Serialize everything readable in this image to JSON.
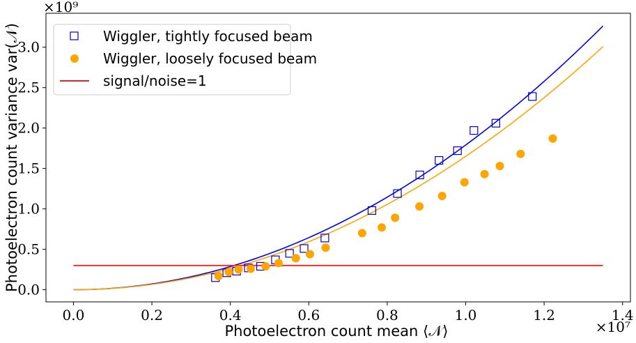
{
  "chart_data": {
    "type": "scatter",
    "xlabel": "Photoelectron count mean ⟨𝒩⟩",
    "ylabel": "Photoelectron count variance var(𝒩)",
    "x_multiplier": "×10⁷",
    "y_multiplier": "×10⁹",
    "xlim": [
      -0.07,
      1.42
    ],
    "ylim": [
      -0.15,
      3.42
    ],
    "x_ticks": [
      0.0,
      0.2,
      0.4,
      0.6,
      0.8,
      1.0,
      1.2,
      1.4
    ],
    "x_tick_labels": [
      "0.0",
      "0.2",
      "0.4",
      "0.6",
      "0.8",
      "1.0",
      "1.2",
      "1.4"
    ],
    "y_ticks": [
      0.0,
      0.5,
      1.0,
      1.5,
      2.0,
      2.5,
      3.0
    ],
    "y_tick_labels": [
      "0.0",
      "0.5",
      "1.0",
      "1.5",
      "2.0",
      "2.5",
      "3.0"
    ],
    "grid": false,
    "legend_position": "top-left",
    "series": [
      {
        "name": "Wiggler, tightly focused beam",
        "kind": "markers",
        "marker": "open-square",
        "color": "#0000cc",
        "x": [
          0.362,
          0.391,
          0.416,
          0.446,
          0.477,
          0.515,
          0.551,
          0.588,
          0.641,
          0.761,
          0.826,
          0.883,
          0.932,
          0.979,
          1.021,
          1.077,
          1.17
        ],
        "y": [
          0.15,
          0.21,
          0.23,
          0.27,
          0.29,
          0.37,
          0.45,
          0.51,
          0.64,
          0.98,
          1.19,
          1.42,
          1.6,
          1.72,
          1.97,
          2.06,
          2.39
        ]
      },
      {
        "name": "Wiggler, loosely focused beam",
        "kind": "markers",
        "marker": "filled-circle",
        "color": "#ffa500",
        "x": [
          0.37,
          0.396,
          0.421,
          0.452,
          0.49,
          0.523,
          0.567,
          0.603,
          0.643,
          0.736,
          0.786,
          0.82,
          0.882,
          0.94,
          0.997,
          1.048,
          1.087,
          1.14,
          1.222
        ],
        "y": [
          0.17,
          0.22,
          0.25,
          0.26,
          0.29,
          0.33,
          0.39,
          0.44,
          0.52,
          0.7,
          0.77,
          0.89,
          1.03,
          1.16,
          1.33,
          1.43,
          1.53,
          1.68,
          1.87
        ]
      },
      {
        "name": "signal/noise=1",
        "kind": "line",
        "color": "#ee2222",
        "x": [
          0.0,
          1.35
        ],
        "y": [
          0.3,
          0.3
        ]
      },
      {
        "kind": "curve",
        "color": "#0000ee",
        "x_end": 1.35,
        "coef": 1.79
      },
      {
        "kind": "curve",
        "color": "#ffa500",
        "x_end": 1.35,
        "coef": 1.65
      }
    ]
  }
}
